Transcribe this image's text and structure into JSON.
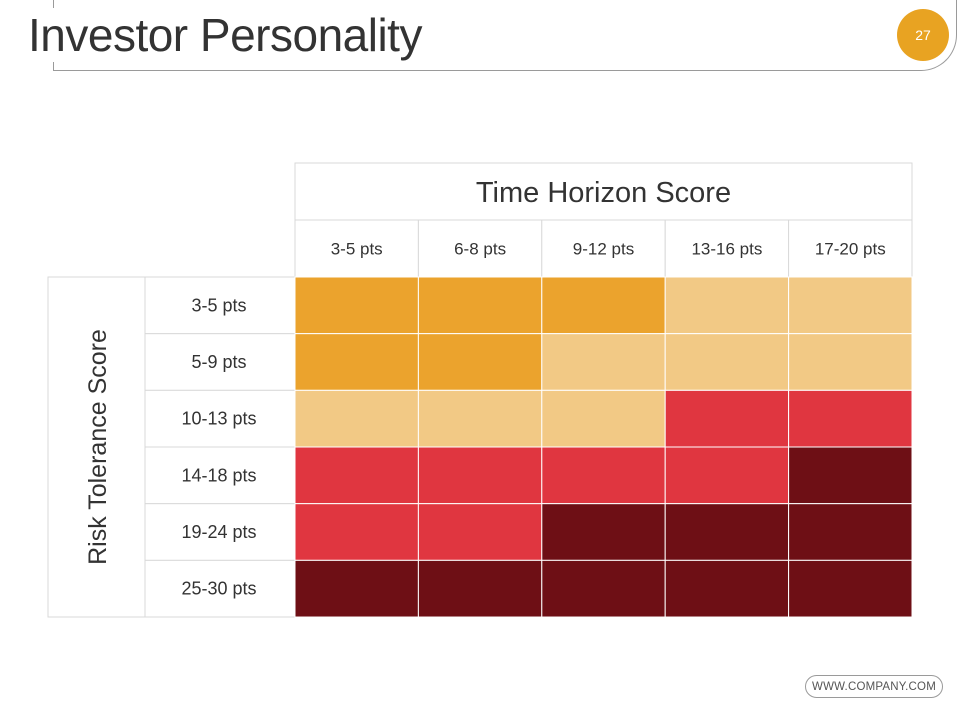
{
  "header": {
    "title": "Investor Personality",
    "page_number": "27"
  },
  "footer": {
    "website": "WWW.COMPANY.COM"
  },
  "colors": {
    "level1": "#eba32d",
    "level2": "#f2c985",
    "level3": "#e03640",
    "level4": "#6e0f15",
    "badge": "#e8a322"
  },
  "chart_data": {
    "type": "heatmap",
    "title": "",
    "xlabel": "Time Horizon Score",
    "ylabel": "Risk Tolerance Score",
    "x_categories": [
      "3-5 pts",
      "6-8 pts",
      "9-12 pts",
      "13-16 pts",
      "17-20 pts"
    ],
    "y_categories": [
      "3-5 pts",
      "5-9 pts",
      "10-13 pts",
      "14-18 pts",
      "19-24 pts",
      "25-30 pts"
    ],
    "values": [
      [
        1,
        1,
        1,
        2,
        2
      ],
      [
        1,
        1,
        2,
        2,
        2
      ],
      [
        2,
        2,
        2,
        3,
        3
      ],
      [
        3,
        3,
        3,
        3,
        4
      ],
      [
        3,
        3,
        4,
        4,
        4
      ],
      [
        4,
        4,
        4,
        4,
        4
      ]
    ],
    "color_scale": {
      "1": "#eba32d",
      "2": "#f2c985",
      "3": "#e03640",
      "4": "#6e0f15"
    },
    "legend": "none",
    "grid": true
  }
}
